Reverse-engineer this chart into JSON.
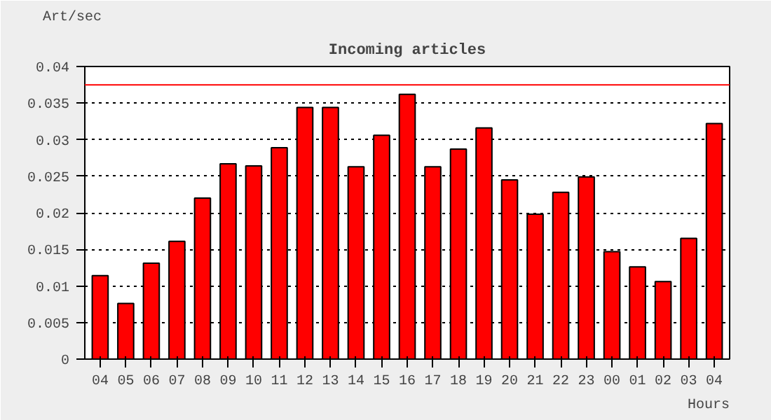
{
  "chart_data": {
    "type": "bar",
    "title": "Incoming articles",
    "ylabel": "Art/sec",
    "xlabel": "Hours",
    "categories": [
      "04",
      "05",
      "06",
      "07",
      "08",
      "09",
      "10",
      "11",
      "12",
      "13",
      "14",
      "15",
      "16",
      "17",
      "18",
      "19",
      "20",
      "21",
      "22",
      "23",
      "00",
      "01",
      "02",
      "03",
      "04"
    ],
    "values": [
      0.0114,
      0.0076,
      0.0131,
      0.0161,
      0.022,
      0.0267,
      0.0264,
      0.0289,
      0.0344,
      0.0344,
      0.0263,
      0.0306,
      0.0362,
      0.0263,
      0.0287,
      0.0316,
      0.0245,
      0.0198,
      0.0228,
      0.0249,
      0.0147,
      0.0126,
      0.0106,
      0.0165,
      0.0322
    ],
    "color": "#ff0000",
    "ylim": [
      0,
      0.04
    ],
    "yticks": [
      0,
      0.005,
      0.01,
      0.015,
      0.02,
      0.025,
      0.03,
      0.035,
      0.04
    ],
    "grid": "y",
    "ref_lines": [
      {
        "axis": "y",
        "value": 0.0375,
        "color": "#ff0000"
      }
    ]
  }
}
